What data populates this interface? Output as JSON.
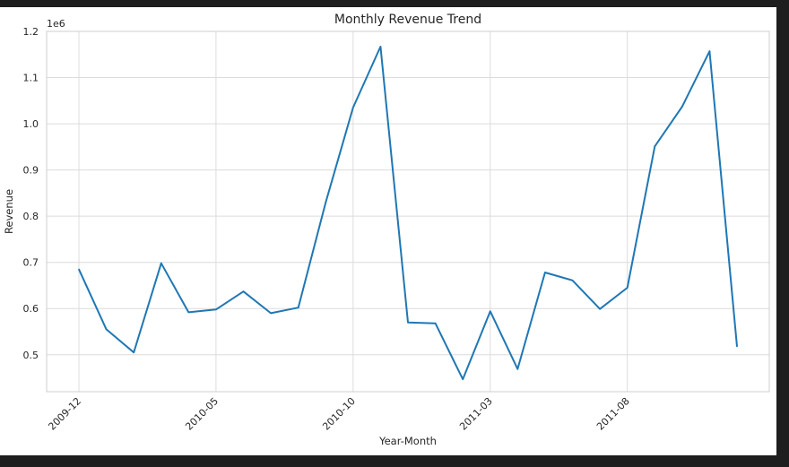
{
  "chart_data": {
    "type": "line",
    "title": "Monthly Revenue Trend",
    "xlabel": "Year-Month",
    "ylabel": "Revenue",
    "y_offset_label": "1e6",
    "x": [
      "2009-12",
      "2010-01",
      "2010-02",
      "2010-03",
      "2010-04",
      "2010-05",
      "2010-06",
      "2010-07",
      "2010-08",
      "2010-09",
      "2010-10",
      "2010-11",
      "2010-12",
      "2011-01",
      "2011-02",
      "2011-03",
      "2011-04",
      "2011-05",
      "2011-06",
      "2011-07",
      "2011-08",
      "2011-09",
      "2011-10",
      "2011-11",
      "2011-12"
    ],
    "x_tick_labels": [
      "2009-12",
      "2010-05",
      "2010-10",
      "2011-03",
      "2011-08"
    ],
    "series": [
      {
        "values": [
          0.685,
          0.555,
          0.505,
          0.698,
          0.592,
          0.598,
          0.637,
          0.59,
          0.602,
          0.83,
          1.035,
          1.167,
          0.57,
          0.568,
          0.447,
          0.594,
          0.469,
          0.678,
          0.661,
          0.599,
          0.645,
          0.951,
          1.037,
          1.157,
          0.518
        ],
        "color": "#1f77b4"
      }
    ],
    "ylim": [
      0.42,
      1.2
    ],
    "y_ticks": [
      "0.5",
      "0.6",
      "0.7",
      "0.8",
      "0.9",
      "1.0",
      "1.1",
      "1.2"
    ],
    "grid": true
  }
}
